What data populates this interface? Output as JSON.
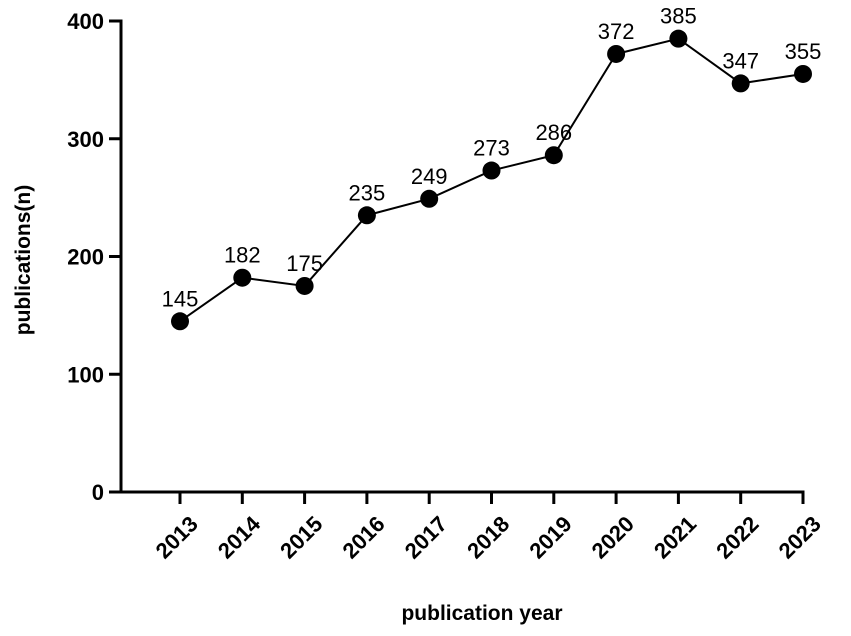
{
  "chart_data": {
    "type": "line",
    "categories": [
      "2013",
      "2014",
      "2015",
      "2016",
      "2017",
      "2018",
      "2019",
      "2020",
      "2021",
      "2022",
      "2023"
    ],
    "values": [
      145,
      182,
      175,
      235,
      249,
      273,
      286,
      372,
      385,
      347,
      355
    ],
    "xlabel": "publication year",
    "ylabel": "publications(n)",
    "ylim": [
      0,
      400
    ],
    "yticks": [
      0,
      100,
      200,
      300,
      400
    ],
    "data_labels": true,
    "grid": false,
    "legend": "none",
    "colors": {
      "line": "#000000",
      "marker": "#000000"
    }
  }
}
